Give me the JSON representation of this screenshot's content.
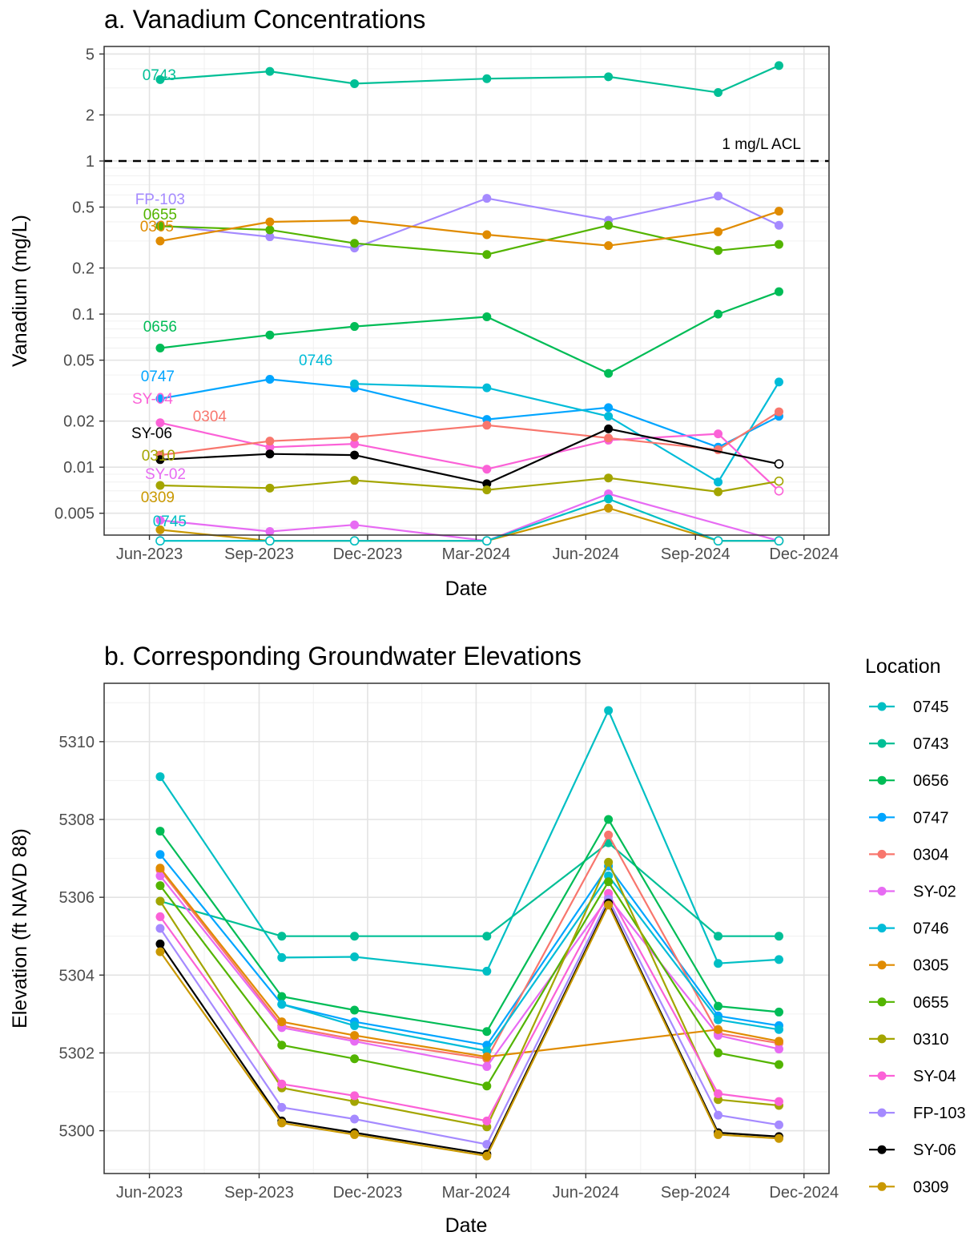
{
  "legend_title": "Location",
  "chart_data": [
    {
      "type": "line",
      "title": "a. Vanadium Concentrations",
      "xlabel": "Date",
      "ylabel": "Vanadium (mg/L)",
      "y_scale": "log10",
      "ylim": [
        0.0036,
        5.6
      ],
      "xlim": [
        "2023-04-24",
        "2024-12-22"
      ],
      "grid": true,
      "x_ticks": [
        {
          "date": "2023-06-01",
          "label": "Jun-2023"
        },
        {
          "date": "2023-09-01",
          "label": "Sep-2023"
        },
        {
          "date": "2023-12-01",
          "label": "Dec-2023"
        },
        {
          "date": "2024-03-01",
          "label": "Mar-2024"
        },
        {
          "date": "2024-06-01",
          "label": "Jun-2024"
        },
        {
          "date": "2024-09-01",
          "label": "Sep-2024"
        },
        {
          "date": "2024-12-01",
          "label": "Dec-2024"
        }
      ],
      "y_ticks": [
        {
          "value": 0.005,
          "label": "0.005"
        },
        {
          "value": 0.01,
          "label": "0.01"
        },
        {
          "value": 0.02,
          "label": "0.02"
        },
        {
          "value": 0.05,
          "label": "0.05"
        },
        {
          "value": 0.1,
          "label": "0.1"
        },
        {
          "value": 0.2,
          "label": "0.2"
        },
        {
          "value": 0.5,
          "label": "0.5"
        },
        {
          "value": 1,
          "label": "1"
        },
        {
          "value": 2,
          "label": "2"
        },
        {
          "value": 5,
          "label": "5"
        }
      ],
      "reference_line": {
        "y": 1,
        "label": "1 mg/L ACL",
        "style": "dashed"
      },
      "series": [
        {
          "name": "0743",
          "color": "#00BF96",
          "x": [
            "2023-06-10",
            "2023-09-10",
            "2023-11-20",
            "2024-03-10",
            "2024-06-20",
            "2024-09-20",
            "2024-11-10"
          ],
          "y": [
            3.4,
            3.85,
            3.2,
            3.45,
            3.55,
            2.8,
            4.2
          ]
        },
        {
          "name": "FP-103",
          "color": "#A58AFF",
          "x": [
            "2023-06-10",
            "2023-09-10",
            "2023-11-20",
            "2024-03-10",
            "2024-06-20",
            "2024-09-20",
            "2024-11-10"
          ],
          "y": [
            0.38,
            0.32,
            0.27,
            0.57,
            0.41,
            0.59,
            0.38
          ]
        },
        {
          "name": "0655",
          "color": "#53B400",
          "x": [
            "2023-06-10",
            "2023-09-10",
            "2023-11-20",
            "2024-03-10",
            "2024-06-20",
            "2024-09-20",
            "2024-11-10"
          ],
          "y": [
            0.375,
            0.355,
            0.29,
            0.245,
            0.38,
            0.26,
            0.285
          ]
        },
        {
          "name": "0305",
          "color": "#E08B00",
          "x": [
            "2023-06-10",
            "2023-09-10",
            "2023-11-20",
            "2024-03-10",
            "2024-06-20",
            "2024-09-20",
            "2024-11-10"
          ],
          "y": [
            0.3,
            0.4,
            0.41,
            0.33,
            0.28,
            0.345,
            0.47
          ]
        },
        {
          "name": "0656",
          "color": "#00BC56",
          "x": [
            "2023-06-10",
            "2023-09-10",
            "2023-11-20",
            "2024-03-10",
            "2024-06-20",
            "2024-09-20",
            "2024-11-10"
          ],
          "y": [
            0.06,
            0.073,
            0.083,
            0.096,
            0.041,
            0.1,
            0.14
          ]
        },
        {
          "name": "0747",
          "color": "#00A5FF",
          "x": [
            "2023-06-10",
            "2023-09-10",
            "2023-11-20",
            "2024-03-10",
            "2024-06-20",
            "2024-09-20",
            "2024-11-10"
          ],
          "y": [
            0.028,
            0.0375,
            0.033,
            0.0205,
            0.0245,
            0.0135,
            0.0215
          ]
        },
        {
          "name": "0746",
          "color": "#00BCD8",
          "x": [
            "2023-11-20",
            "2024-03-10",
            "2024-06-20",
            "2024-09-20",
            "2024-11-10"
          ],
          "y": [
            0.035,
            0.033,
            0.0215,
            0.008,
            0.036
          ]
        },
        {
          "name": "SY-04",
          "color": "#FB61D7",
          "x": [
            "2023-06-10",
            "2023-09-10",
            "2023-11-20",
            "2024-03-10",
            "2024-06-20",
            "2024-09-20",
            "2024-11-10"
          ],
          "y": [
            0.0195,
            0.0135,
            0.0142,
            0.0097,
            0.015,
            0.0165,
            0.007
          ],
          "open_points": [
            false,
            false,
            false,
            false,
            false,
            false,
            true
          ]
        },
        {
          "name": "0304",
          "color": "#F8766D",
          "x": [
            "2023-06-10",
            "2023-09-10",
            "2023-11-20",
            "2024-03-10",
            "2024-06-20",
            "2024-09-20",
            "2024-11-10"
          ],
          "y": [
            0.012,
            0.0148,
            0.0157,
            0.0188,
            0.0155,
            0.013,
            0.023
          ]
        },
        {
          "name": "SY-06",
          "color": "#000000",
          "x": [
            "2023-06-10",
            "2023-09-10",
            "2023-11-20",
            "2024-03-10",
            "2024-06-20",
            "2024-11-10"
          ],
          "y": [
            0.0112,
            0.0122,
            0.012,
            0.0078,
            0.0178,
            0.0105
          ],
          "open_points": [
            false,
            false,
            false,
            false,
            false,
            true
          ]
        },
        {
          "name": "0310",
          "color": "#A3A500",
          "x": [
            "2023-06-10",
            "2023-09-10",
            "2023-11-20",
            "2024-03-10",
            "2024-06-20",
            "2024-09-20",
            "2024-11-10"
          ],
          "y": [
            0.0076,
            0.0073,
            0.0082,
            0.0071,
            0.0085,
            0.0069,
            0.0081
          ],
          "open_points": [
            false,
            false,
            false,
            false,
            false,
            false,
            true
          ]
        },
        {
          "name": "SY-02",
          "color": "#E76BF3",
          "x": [
            "2023-06-10",
            "2023-09-10",
            "2023-11-20",
            "2024-03-10",
            "2024-06-20",
            "2024-11-10"
          ],
          "y": [
            0.0045,
            0.0038,
            0.0042,
            0.0033,
            0.0067,
            0.0033
          ],
          "open_points": [
            false,
            false,
            false,
            true,
            false,
            true
          ]
        },
        {
          "name": "0309",
          "color": "#C99800",
          "x": [
            "2023-06-10",
            "2023-09-10",
            "2023-11-20",
            "2024-03-10",
            "2024-06-20",
            "2024-09-20",
            "2024-11-10"
          ],
          "y": [
            0.0039,
            0.0033,
            0.0033,
            0.0033,
            0.0054,
            0.0033,
            0.0033
          ],
          "open_points": [
            false,
            true,
            true,
            true,
            false,
            true,
            true
          ]
        },
        {
          "name": "0745",
          "color": "#00BFC4",
          "x": [
            "2023-06-10",
            "2023-09-10",
            "2023-11-20",
            "2024-03-10",
            "2024-06-20",
            "2024-09-20",
            "2024-11-10"
          ],
          "y": [
            0.0033,
            0.0033,
            0.0033,
            0.0033,
            0.0062,
            0.0033,
            0.0033
          ],
          "open_points": [
            true,
            true,
            true,
            true,
            false,
            true,
            true
          ]
        }
      ],
      "series_labels": [
        {
          "series": "0743",
          "text": "0743"
        },
        {
          "series": "FP-103",
          "text": "FP-103"
        },
        {
          "series": "0655",
          "text": "0655"
        },
        {
          "series": "0305",
          "text": "0305"
        },
        {
          "series": "0656",
          "text": "0656"
        },
        {
          "series": "0746",
          "text": "0746"
        },
        {
          "series": "0747",
          "text": "0747"
        },
        {
          "series": "SY-04",
          "text": "SY-04"
        },
        {
          "series": "0304",
          "text": "0304"
        },
        {
          "series": "SY-06",
          "text": "SY-06"
        },
        {
          "series": "0310",
          "text": "0310"
        },
        {
          "series": "SY-02",
          "text": "SY-02"
        },
        {
          "series": "0309",
          "text": "0309"
        },
        {
          "series": "0745",
          "text": "0745"
        }
      ]
    },
    {
      "type": "line",
      "title": "b. Corresponding Groundwater Elevations",
      "xlabel": "Date",
      "ylabel": "Elevation (ft NAVD 88)",
      "ylim": [
        5298.9,
        5311.5
      ],
      "xlim": [
        "2023-04-24",
        "2024-12-22"
      ],
      "grid": true,
      "legend_position": "right",
      "x_ticks": [
        {
          "date": "2023-06-01",
          "label": "Jun-2023"
        },
        {
          "date": "2023-09-01",
          "label": "Sep-2023"
        },
        {
          "date": "2023-12-01",
          "label": "Dec-2023"
        },
        {
          "date": "2024-03-01",
          "label": "Mar-2024"
        },
        {
          "date": "2024-06-01",
          "label": "Jun-2024"
        },
        {
          "date": "2024-09-01",
          "label": "Sep-2024"
        },
        {
          "date": "2024-12-01",
          "label": "Dec-2024"
        }
      ],
      "y_ticks": [
        {
          "value": 5300,
          "label": "5300"
        },
        {
          "value": 5302,
          "label": "5302"
        },
        {
          "value": 5304,
          "label": "5304"
        },
        {
          "value": 5306,
          "label": "5306"
        },
        {
          "value": 5308,
          "label": "5308"
        },
        {
          "value": 5310,
          "label": "5310"
        }
      ],
      "series": [
        {
          "name": "0745",
          "color": "#00BFC4",
          "x": [
            "2023-06-10",
            "2023-09-20",
            "2023-11-20",
            "2024-03-10",
            "2024-06-20",
            "2024-09-20",
            "2024-11-10"
          ],
          "y": [
            5309.1,
            5304.45,
            5304.47,
            5304.1,
            5310.8,
            5304.3,
            5304.4
          ]
        },
        {
          "name": "0743",
          "color": "#00BF96",
          "x": [
            "2023-06-10",
            "2023-09-20",
            "2023-11-20",
            "2024-03-10",
            "2024-06-20",
            "2024-09-20",
            "2024-11-10"
          ],
          "y": [
            5305.9,
            5305.0,
            5305.0,
            5305.0,
            5307.4,
            5305.0,
            5305.0
          ]
        },
        {
          "name": "0656",
          "color": "#00BC56",
          "x": [
            "2023-06-10",
            "2023-09-20",
            "2023-11-20",
            "2024-03-10",
            "2024-06-20",
            "2024-09-20",
            "2024-11-10"
          ],
          "y": [
            5307.7,
            5303.45,
            5303.1,
            5302.55,
            5308.0,
            5303.2,
            5303.05
          ]
        },
        {
          "name": "0747",
          "color": "#00A5FF",
          "x": [
            "2023-06-10",
            "2023-09-20",
            "2023-11-20",
            "2024-03-10",
            "2024-06-20",
            "2024-09-20",
            "2024-11-10"
          ],
          "y": [
            5307.1,
            5303.25,
            5302.8,
            5302.2,
            5306.8,
            5302.95,
            5302.7
          ]
        },
        {
          "name": "0304",
          "color": "#F8766D",
          "x": [
            "2023-06-10",
            "2023-09-20",
            "2023-11-20",
            "2024-03-10",
            "2024-06-20",
            "2024-09-20",
            "2024-11-10"
          ],
          "y": [
            5306.7,
            5302.7,
            5302.35,
            5301.85,
            5307.6,
            5302.5,
            5302.25
          ]
        },
        {
          "name": "SY-02",
          "color": "#E76BF3",
          "x": [
            "2023-06-10",
            "2023-09-20",
            "2023-11-20",
            "2024-03-10",
            "2024-06-20",
            "2024-09-20",
            "2024-11-10"
          ],
          "y": [
            5306.55,
            5302.65,
            5302.3,
            5301.65,
            5306.0,
            5302.45,
            5302.1
          ]
        },
        {
          "name": "0746",
          "color": "#00BCD8",
          "x": [
            "2023-09-20",
            "2023-11-20",
            "2024-03-10",
            "2024-06-20",
            "2024-09-20",
            "2024-11-10"
          ],
          "y": [
            5303.25,
            5302.7,
            5302.05,
            5306.55,
            5302.85,
            5302.6
          ]
        },
        {
          "name": "0305",
          "color": "#E08B00",
          "x": [
            "2023-06-10",
            "2023-09-20",
            "2023-11-20",
            "2024-03-10",
            "2024-09-20",
            "2024-11-10"
          ],
          "y": [
            5306.75,
            5302.8,
            5302.45,
            5301.9,
            5302.6,
            5302.3
          ]
        },
        {
          "name": "0655",
          "color": "#53B400",
          "x": [
            "2023-06-10",
            "2023-09-20",
            "2023-11-20",
            "2024-03-10",
            "2024-06-20",
            "2024-09-20",
            "2024-11-10"
          ],
          "y": [
            5306.3,
            5302.2,
            5301.85,
            5301.15,
            5306.4,
            5302.0,
            5301.7
          ]
        },
        {
          "name": "0310",
          "color": "#A3A500",
          "x": [
            "2023-06-10",
            "2023-09-20",
            "2023-11-20",
            "2024-03-10",
            "2024-06-20",
            "2024-09-20",
            "2024-11-10"
          ],
          "y": [
            5305.9,
            5301.1,
            5300.75,
            5300.1,
            5306.9,
            5300.8,
            5300.65
          ]
        },
        {
          "name": "SY-04",
          "color": "#FB61D7",
          "x": [
            "2023-06-10",
            "2023-09-20",
            "2023-11-20",
            "2024-03-10",
            "2024-06-20",
            "2024-09-20",
            "2024-11-10"
          ],
          "y": [
            5305.5,
            5301.2,
            5300.9,
            5300.25,
            5306.1,
            5300.95,
            5300.75
          ]
        },
        {
          "name": "FP-103",
          "color": "#A58AFF",
          "x": [
            "2023-06-10",
            "2023-09-20",
            "2023-11-20",
            "2024-03-10",
            "2024-06-20",
            "2024-09-20",
            "2024-11-10"
          ],
          "y": [
            5305.2,
            5300.6,
            5300.3,
            5299.65,
            5305.95,
            5300.4,
            5300.15
          ]
        },
        {
          "name": "SY-06",
          "color": "#000000",
          "x": [
            "2023-06-10",
            "2023-09-20",
            "2023-11-20",
            "2024-03-10",
            "2024-06-20",
            "2024-09-20",
            "2024-11-10"
          ],
          "y": [
            5304.8,
            5300.25,
            5299.95,
            5299.4,
            5305.85,
            5299.95,
            5299.85
          ]
        },
        {
          "name": "0309",
          "color": "#C99800",
          "x": [
            "2023-06-10",
            "2023-09-20",
            "2023-11-20",
            "2024-03-10",
            "2024-06-20",
            "2024-09-20",
            "2024-11-10"
          ],
          "y": [
            5304.6,
            5300.2,
            5299.9,
            5299.35,
            5305.8,
            5299.9,
            5299.8
          ]
        }
      ]
    }
  ]
}
